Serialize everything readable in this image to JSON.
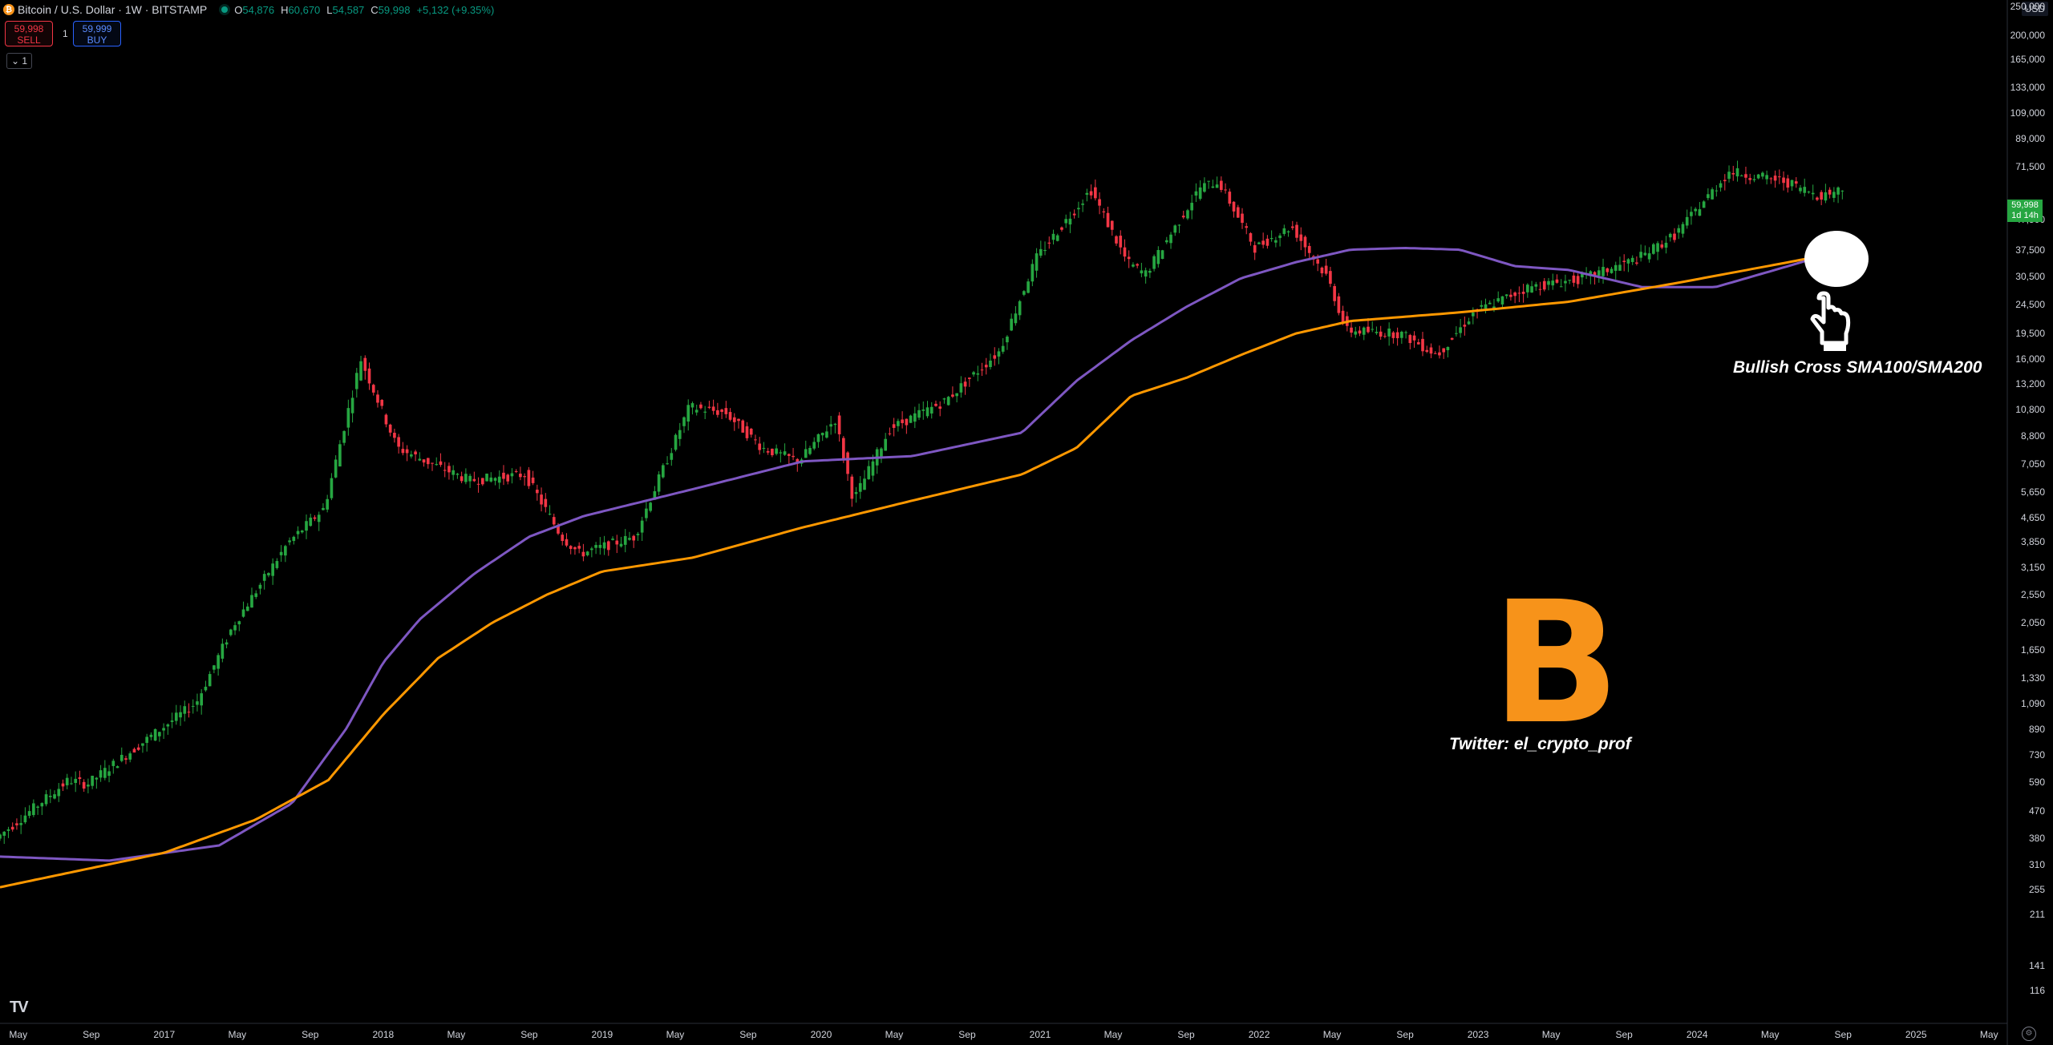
{
  "header": {
    "symbol": "Bitcoin / U.S. Dollar · 1W · BITSTAMP",
    "coin_icon": "bitcoin-icon",
    "open_label": "O",
    "open": "54,876",
    "high_label": "H",
    "high": "60,670",
    "low_label": "L",
    "low": "54,587",
    "close_label": "C",
    "close": "59,998",
    "change": "+5,132 (+9.35%)"
  },
  "trade": {
    "sell_price": "59,998",
    "sell_label": "SELL",
    "spread": "1",
    "buy_price": "59,999",
    "buy_label": "BUY"
  },
  "collapse_label": "⌄ 1",
  "currency": "USD",
  "price_axis": {
    "labels": [
      "250,000",
      "200,000",
      "165,000",
      "133,000",
      "109,000",
      "89,000",
      "71,500",
      "47,500",
      "37,500",
      "30,500",
      "24,500",
      "19,500",
      "16,000",
      "13,200",
      "10,800",
      "8,800",
      "7,050",
      "5,650",
      "4,650",
      "3,850",
      "3,150",
      "2,550",
      "2,050",
      "1,650",
      "1,330",
      "1,090",
      "890",
      "730",
      "590",
      "470",
      "380",
      "310",
      "255",
      "211",
      "141",
      "116"
    ],
    "current_price": "59,998",
    "countdown": "1d 14h"
  },
  "time_axis": {
    "labels": [
      "May",
      "Sep",
      "2017",
      "May",
      "Sep",
      "2018",
      "May",
      "Sep",
      "2019",
      "May",
      "Sep",
      "2020",
      "May",
      "Sep",
      "2021",
      "May",
      "Sep",
      "2022",
      "May",
      "Sep",
      "2023",
      "May",
      "Sep",
      "2024",
      "May",
      "Sep",
      "2025",
      "May"
    ]
  },
  "annotations": {
    "cross": "Bullish Cross SMA100/SMA200",
    "twitter": "Twitter: el_crypto_prof",
    "logo": "B"
  },
  "icons": {
    "hand": "pointing-hand-icon",
    "tv": "tradingview-logo-icon",
    "settings": "settings-icon"
  },
  "tv_logo_text": "TV",
  "colors": {
    "up": "#26a641",
    "down": "#f23645",
    "sma100": "#7e57c2",
    "sma200": "#ff9800",
    "bitcoin": "#f7931a"
  },
  "chart_data": {
    "type": "candlestick",
    "title": "Bitcoin / U.S. Dollar · 1W · BITSTAMP",
    "scale": "log",
    "x_range": [
      "2016-04",
      "2025-06"
    ],
    "y_range": [
      100,
      250000
    ],
    "price_path": [
      [
        "2016-04",
        380
      ],
      [
        "2016-08",
        600
      ],
      [
        "2016-09",
        580
      ],
      [
        "2016-12",
        800
      ],
      [
        "2017-03",
        1100
      ],
      [
        "2017-05",
        2000
      ],
      [
        "2017-08",
        3800
      ],
      [
        "2017-10",
        5000
      ],
      [
        "2017-12",
        16000
      ],
      [
        "2018-02",
        8000
      ],
      [
        "2018-04",
        7000
      ],
      [
        "2018-06",
        6200
      ],
      [
        "2018-09",
        6500
      ],
      [
        "2018-11",
        4000
      ],
      [
        "2018-12",
        3500
      ],
      [
        "2019-03",
        4000
      ],
      [
        "2019-06",
        11000
      ],
      [
        "2019-08",
        10500
      ],
      [
        "2019-10",
        8000
      ],
      [
        "2019-12",
        7200
      ],
      [
        "2020-02",
        10000
      ],
      [
        "2020-03",
        5300
      ],
      [
        "2020-05",
        9300
      ],
      [
        "2020-08",
        11500
      ],
      [
        "2020-11",
        17000
      ],
      [
        "2021-01",
        35000
      ],
      [
        "2021-04",
        60000
      ],
      [
        "2021-06",
        34000
      ],
      [
        "2021-07",
        31000
      ],
      [
        "2021-10",
        61000
      ],
      [
        "2021-11",
        64000
      ],
      [
        "2022-01",
        38000
      ],
      [
        "2022-03",
        45000
      ],
      [
        "2022-05",
        30000
      ],
      [
        "2022-06",
        20000
      ],
      [
        "2022-09",
        19500
      ],
      [
        "2022-11",
        16500
      ],
      [
        "2023-01",
        23000
      ],
      [
        "2023-04",
        28000
      ],
      [
        "2023-07",
        30000
      ],
      [
        "2023-10",
        35000
      ],
      [
        "2023-12",
        42000
      ],
      [
        "2024-03",
        69000
      ],
      [
        "2024-06",
        64000
      ],
      [
        "2024-08",
        57000
      ],
      [
        "2024-09",
        59998
      ]
    ],
    "series": [
      {
        "name": "SMA100",
        "color": "#7e57c2",
        "values": [
          [
            "2016-04",
            330
          ],
          [
            "2016-10",
            320
          ],
          [
            "2017-04",
            360
          ],
          [
            "2017-08",
            500
          ],
          [
            "2017-11",
            900
          ],
          [
            "2018-01",
            1500
          ],
          [
            "2018-03",
            2100
          ],
          [
            "2018-06",
            3000
          ],
          [
            "2018-09",
            4000
          ],
          [
            "2018-12",
            4700
          ],
          [
            "2019-06",
            5800
          ],
          [
            "2019-12",
            7200
          ],
          [
            "2020-06",
            7500
          ],
          [
            "2020-12",
            9000
          ],
          [
            "2021-03",
            13500
          ],
          [
            "2021-06",
            18500
          ],
          [
            "2021-09",
            24000
          ],
          [
            "2021-12",
            30000
          ],
          [
            "2022-03",
            34000
          ],
          [
            "2022-06",
            37500
          ],
          [
            "2022-09",
            38000
          ],
          [
            "2022-12",
            37500
          ],
          [
            "2023-03",
            33000
          ],
          [
            "2023-06",
            32000
          ],
          [
            "2023-10",
            28000
          ],
          [
            "2024-02",
            28000
          ],
          [
            "2024-06",
            33000
          ],
          [
            "2024-09",
            37500
          ]
        ]
      },
      {
        "name": "SMA200",
        "color": "#ff9800",
        "values": [
          [
            "2016-04",
            260
          ],
          [
            "2017-01",
            340
          ],
          [
            "2017-06",
            440
          ],
          [
            "2017-10",
            600
          ],
          [
            "2018-01",
            1000
          ],
          [
            "2018-04",
            1550
          ],
          [
            "2018-07",
            2050
          ],
          [
            "2018-10",
            2550
          ],
          [
            "2019-01",
            3050
          ],
          [
            "2019-06",
            3400
          ],
          [
            "2019-12",
            4300
          ],
          [
            "2020-06",
            5300
          ],
          [
            "2020-12",
            6500
          ],
          [
            "2021-03",
            8000
          ],
          [
            "2021-06",
            12000
          ],
          [
            "2021-09",
            13800
          ],
          [
            "2021-12",
            16500
          ],
          [
            "2022-03",
            19500
          ],
          [
            "2022-06",
            21500
          ],
          [
            "2022-12",
            23000
          ],
          [
            "2023-06",
            25000
          ],
          [
            "2023-12",
            29000
          ],
          [
            "2024-06",
            34000
          ],
          [
            "2024-09",
            37000
          ]
        ]
      }
    ]
  }
}
